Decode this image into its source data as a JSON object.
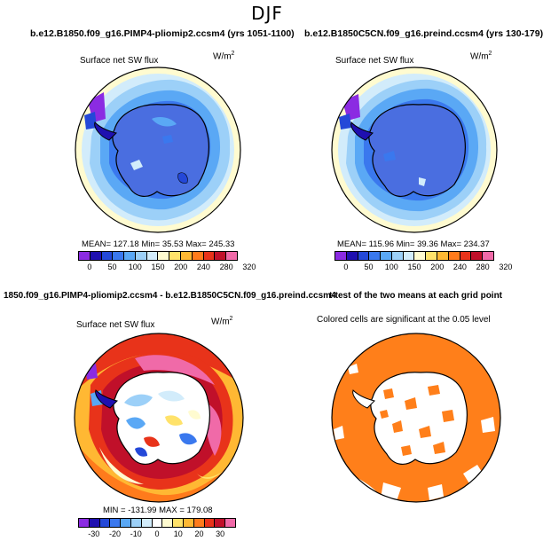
{
  "figure_title": "DJF",
  "panels": [
    {
      "title": "b.e12.B1850.f09_g16.PIMP4-pliomip2.ccsm4 (yrs 1051-1100)",
      "var_label": "Surface net SW flux",
      "units": "W/m",
      "units_exp": "2",
      "stats": "MEAN= 127.18   Min=  35.53   Max= 245.33",
      "tick_labels": [
        "0",
        "50",
        "100",
        "150",
        "200",
        "240",
        "280",
        "320"
      ]
    },
    {
      "title": "b.e12.B1850C5CN.f09_g16.preind.ccsm4 (yrs 130-179)",
      "var_label": "Surface net SW flux",
      "units": "W/m",
      "units_exp": "2",
      "stats": "MEAN= 115.96   Min=  39.36   Max= 234.37",
      "tick_labels": [
        "0",
        "50",
        "100",
        "150",
        "200",
        "240",
        "280",
        "320"
      ]
    },
    {
      "title": "1850.f09_g16.PIMP4-pliomip2.ccsm4 - b.e12.B1850C5CN.f09_g16.preind.ccsm4",
      "var_label": "Surface net SW flux",
      "units": "W/m",
      "units_exp": "2",
      "stats": "MIN = -131.99  MAX = 179.08",
      "tick_labels": [
        "-30",
        "-20",
        "-10",
        "0",
        "10",
        "20",
        "30"
      ]
    },
    {
      "title": "t-test of the two means at each grid point",
      "var_label": "Colored cells are significant at the 0.05 level"
    }
  ],
  "colors": {
    "abs_scale": [
      "#8b2be2",
      "#1f10b0",
      "#2448d8",
      "#3a78ee",
      "#5aa8f5",
      "#9cd0f8",
      "#d2ecfb",
      "#fffbd0",
      "#ffe26a",
      "#ffb833",
      "#ff7b1c",
      "#e8331a",
      "#c0102a",
      "#f06aa8"
    ],
    "diff_scale": [
      "#8b2be2",
      "#1f10b0",
      "#2448d8",
      "#3a78ee",
      "#5aa8f5",
      "#9cd0f8",
      "#d2ecfb",
      "#ffffff",
      "#fffbd0",
      "#ffe26a",
      "#ffb833",
      "#ff7b1c",
      "#e8331a",
      "#c0102a",
      "#f06aa8"
    ],
    "significance": "#ff7f1a",
    "antarctica_base": "#4a6ee0"
  }
}
